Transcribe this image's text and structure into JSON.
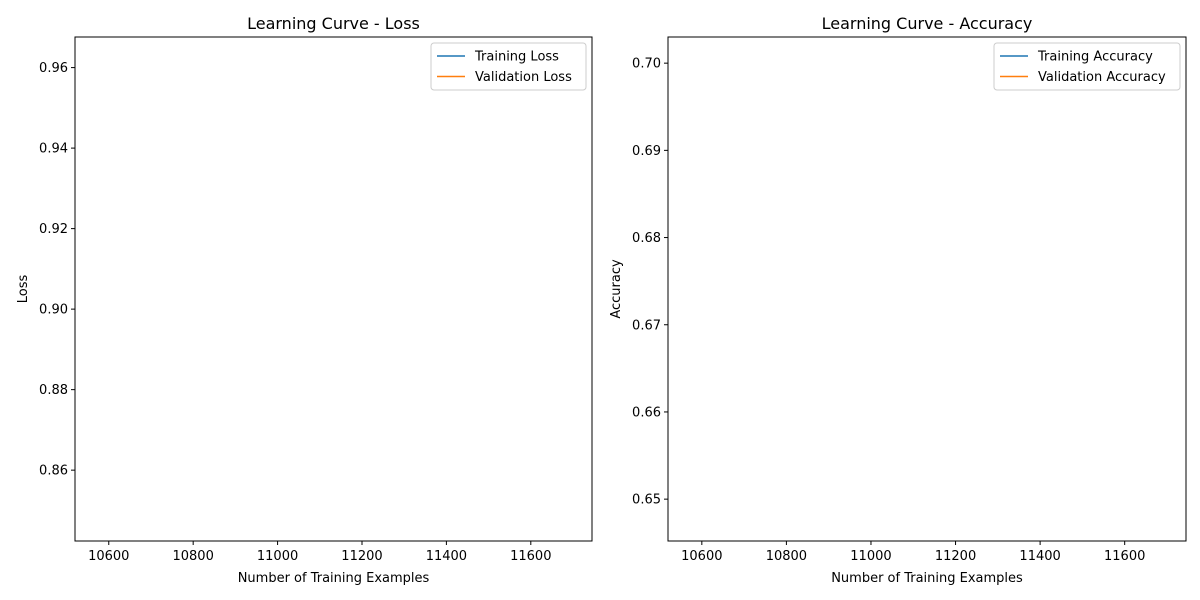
{
  "chart_data": [
    {
      "type": "line",
      "title": "Learning Curve - Loss",
      "xlabel": "Number of Training Examples",
      "ylabel": "Loss",
      "xlim": [
        10520,
        11745
      ],
      "ylim": [
        0.8424,
        0.9676
      ],
      "xticks": [
        10600,
        10800,
        11000,
        11200,
        11400,
        11600
      ],
      "yticks": [
        0.86,
        0.88,
        0.9,
        0.92,
        0.94,
        0.96
      ],
      "tick_decimals": 2,
      "legend": "top-right",
      "grid": false,
      "series": [
        {
          "name": "Training Loss",
          "color": "#1f77b4",
          "x": [],
          "y": []
        },
        {
          "name": "Validation Loss",
          "color": "#ff7f0e",
          "x": [],
          "y": []
        }
      ]
    },
    {
      "type": "line",
      "title": "Learning Curve - Accuracy",
      "xlabel": "Number of Training Examples",
      "ylabel": "Accuracy",
      "xlim": [
        10520,
        11745
      ],
      "ylim": [
        0.6452,
        0.703
      ],
      "xticks": [
        10600,
        10800,
        11000,
        11200,
        11400,
        11600
      ],
      "yticks": [
        0.65,
        0.66,
        0.67,
        0.68,
        0.69,
        0.7
      ],
      "tick_decimals": 2,
      "legend": "top-right",
      "grid": false,
      "series": [
        {
          "name": "Training Accuracy",
          "color": "#1f77b4",
          "x": [],
          "y": []
        },
        {
          "name": "Validation Accuracy",
          "color": "#ff7f0e",
          "x": [],
          "y": []
        }
      ]
    }
  ]
}
